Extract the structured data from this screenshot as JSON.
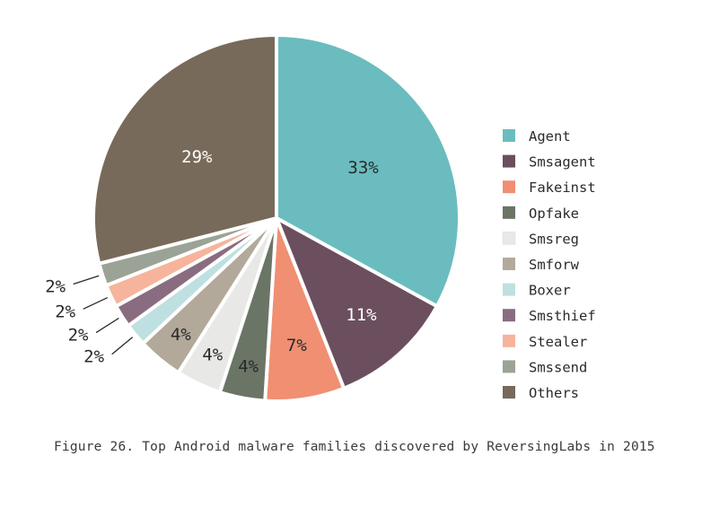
{
  "chart_data": {
    "type": "pie",
    "title": "",
    "slices": [
      {
        "label": "Agent",
        "value": 33,
        "display": "33%",
        "color": "#6bbcbf"
      },
      {
        "label": "Smsagent",
        "value": 11,
        "display": "11%",
        "color": "#6b4f5f"
      },
      {
        "label": "Fakeinst",
        "value": 7,
        "display": "7%",
        "color": "#f08f72"
      },
      {
        "label": "Opfake",
        "value": 4,
        "display": "4%",
        "color": "#6a7566"
      },
      {
        "label": "Smsreg",
        "value": 4,
        "display": "4%",
        "color": "#e8e8e6"
      },
      {
        "label": "Smforw",
        "value": 4,
        "display": "4%",
        "color": "#b3a99b"
      },
      {
        "label": "Boxer",
        "value": 2,
        "display": "2%",
        "color": "#bfe0e0"
      },
      {
        "label": "Smsthief",
        "value": 2,
        "display": "2%",
        "color": "#8a6c80"
      },
      {
        "label": "Stealer",
        "value": 2,
        "display": "2%",
        "color": "#f6b49c"
      },
      {
        "label": "Smssend",
        "value": 2,
        "display": "2%",
        "color": "#9aa396"
      },
      {
        "label": "Others",
        "value": 29,
        "display": "29%",
        "color": "#776a5a"
      }
    ],
    "legend_position": "right"
  },
  "caption": "Figure 26. Top Android malware families discovered by ReversingLabs in 2015"
}
